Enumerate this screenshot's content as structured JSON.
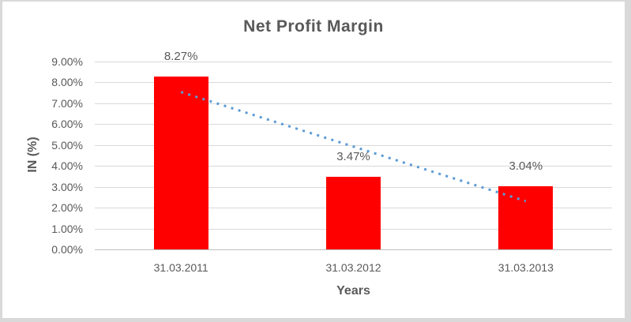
{
  "chart_data": {
    "type": "bar",
    "title": "Net Profit Margin",
    "xlabel": "Years",
    "ylabel": "IN (%)",
    "categories": [
      "31.03.2011",
      "31.03.2012",
      "31.03.2013"
    ],
    "values": [
      8.27,
      3.47,
      3.04
    ],
    "data_labels": [
      "8.27%",
      "3.47%",
      "3.04%"
    ],
    "ylim": [
      0,
      9
    ],
    "ytick_step": 1,
    "ytick_labels": [
      "0.00%",
      "1.00%",
      "2.00%",
      "3.00%",
      "4.00%",
      "5.00%",
      "6.00%",
      "7.00%",
      "8.00%",
      "9.00%"
    ],
    "grid": true,
    "legend": "none",
    "trendline": {
      "type": "linear",
      "style": "dotted",
      "fitted_values": [
        7.54,
        4.93,
        2.31
      ]
    }
  },
  "colors": {
    "bar": "#FF0000",
    "trendline": "#5B9BD5",
    "gridline": "#D9D9D9",
    "axis_line": "#BFBFBF",
    "text": "#595959",
    "background": "#FFFFFF",
    "frame": "#D9D9D9"
  }
}
